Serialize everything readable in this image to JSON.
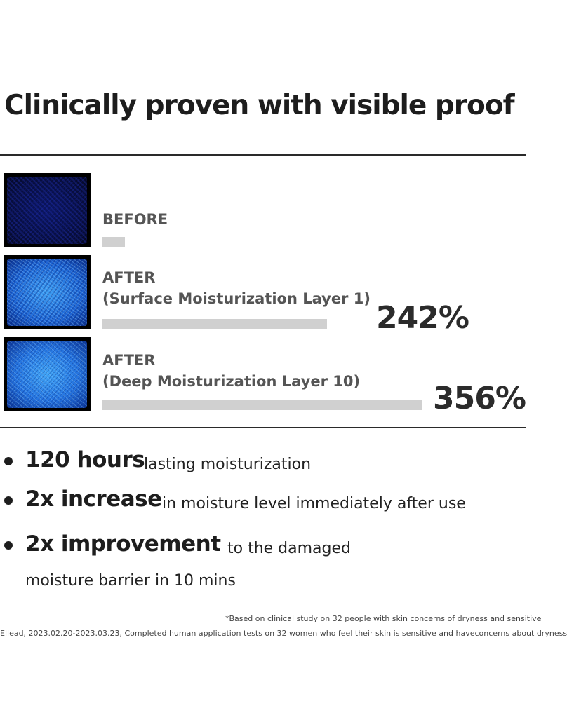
{
  "title": "Clinically proven with visible proof",
  "chart_data": {
    "type": "bar",
    "orientation": "horizontal",
    "categories": [
      [
        "BEFORE"
      ],
      [
        "AFTER",
        "(Surface Moisturization Layer 1)"
      ],
      [
        "AFTER",
        "(Deep Moisturization Layer 10)"
      ]
    ],
    "values": [
      0,
      242,
      356
    ],
    "data_labels": [
      "",
      "242%",
      "356%"
    ],
    "unit": "%",
    "bar_color": "#d0d0d0",
    "grid": false,
    "legend": "none"
  },
  "bullets": [
    {
      "strong": "120 hours",
      "rest": "lasting moisturization"
    },
    {
      "strong": "2x increase",
      "rest": "in moisture level immediately after use"
    },
    {
      "strong": "2x improvement",
      "rest": "to the damaged",
      "rest2": "moisture barrier in 10 mins"
    }
  ],
  "footnotes": [
    "*Based on clinical study on 32 people with skin concerns of dryness and sensitive",
    "Ellead, 2023.02.20-2023.03.23, Completed human application tests on 32 women who feel their skin is sensitive and haveconcerns about dryness"
  ]
}
